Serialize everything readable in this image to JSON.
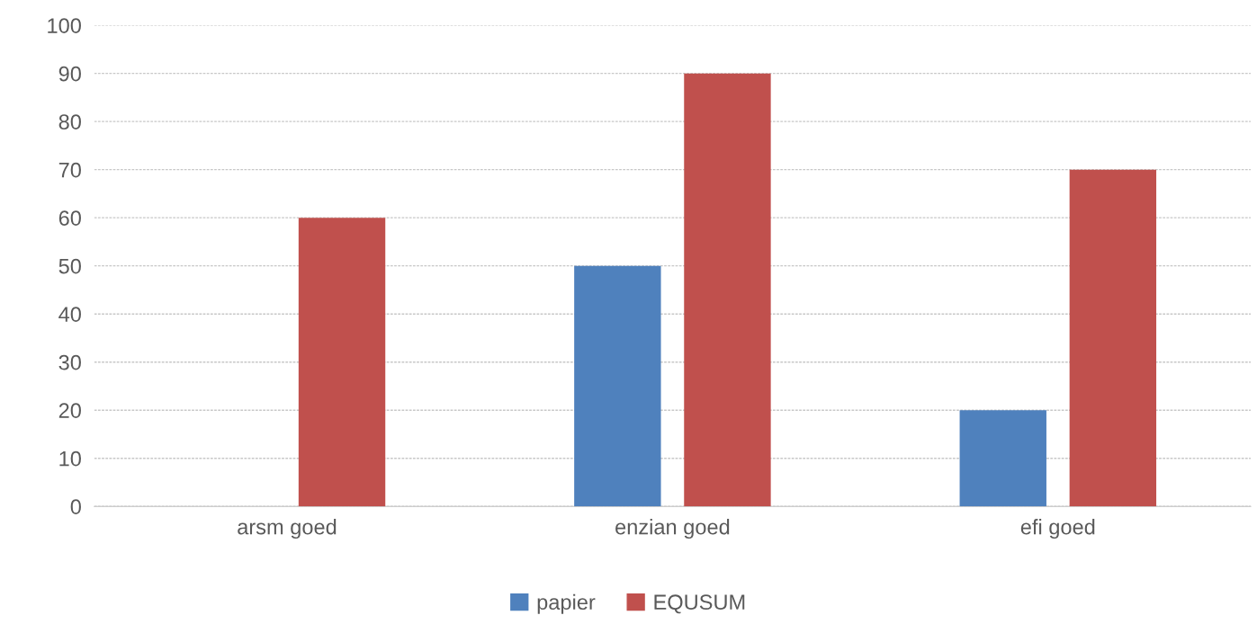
{
  "chart_data": {
    "type": "bar",
    "categories": [
      "arsm goed",
      "enzian goed",
      "efi goed"
    ],
    "series": [
      {
        "name": "papier",
        "color": "#4f81bd",
        "values": [
          null,
          50,
          20
        ]
      },
      {
        "name": "EQUSUM",
        "color": "#c0504d",
        "values": [
          60,
          90,
          70
        ]
      }
    ],
    "ylim": [
      0,
      100
    ],
    "yticks": [
      0,
      10,
      20,
      30,
      40,
      50,
      60,
      70,
      80,
      90,
      100
    ],
    "grid": "y",
    "legend": "bottom"
  }
}
